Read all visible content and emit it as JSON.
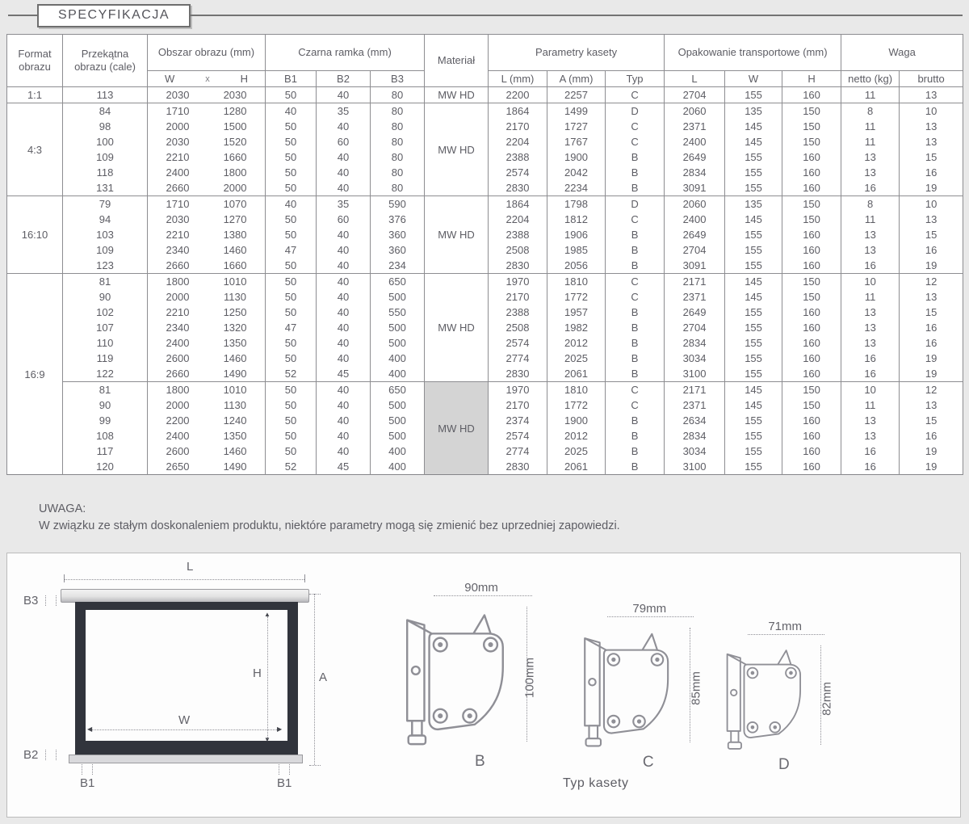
{
  "page": {
    "title": "SPECYFIKACJA"
  },
  "note": {
    "title": "UWAGA:",
    "text": "W związku ze stałym doskonaleniem produktu, niektóre parametry mogą się zmienić bez uprzedniej zapowiedzi."
  },
  "table": {
    "headers": {
      "format": "Format obrazu",
      "diagonal": "Przekątna obrazu (cale)",
      "image_area": "Obszar obrazu (mm)",
      "area_sub": [
        "W",
        "x",
        "H"
      ],
      "black_frame": "Czarna ramka (mm)",
      "black_frame_sub": [
        "B1",
        "B2",
        "B3"
      ],
      "material": "Materiał",
      "cassette": "Parametry kasety",
      "cassette_sub": [
        "L (mm)",
        "A (mm)",
        "Typ"
      ],
      "packaging": "Opakowanie transportowe (mm)",
      "packaging_sub": [
        "L",
        "W",
        "H"
      ],
      "weight": "Waga",
      "weight_sub": [
        "netto (kg)",
        "brutto"
      ]
    },
    "groups": [
      {
        "format": "1:1",
        "sections": [
          {
            "material": "MW HD",
            "highlight": false,
            "rows": [
              [
                "113",
                "2030",
                "2030",
                "50",
                "40",
                "80",
                "2200",
                "2257",
                "C",
                "2704",
                "155",
                "160",
                "11",
                "13"
              ]
            ]
          }
        ]
      },
      {
        "format": "4:3",
        "sections": [
          {
            "material": "MW HD",
            "highlight": false,
            "rows": [
              [
                "84",
                "1710",
                "1280",
                "40",
                "35",
                "80",
                "1864",
                "1499",
                "D",
                "2060",
                "135",
                "150",
                "8",
                "10"
              ],
              [
                "98",
                "2000",
                "1500",
                "50",
                "40",
                "80",
                "2170",
                "1727",
                "C",
                "2371",
                "145",
                "150",
                "11",
                "13"
              ],
              [
                "100",
                "2030",
                "1520",
                "50",
                "60",
                "80",
                "2204",
                "1767",
                "C",
                "2400",
                "145",
                "150",
                "11",
                "13"
              ],
              [
                "109",
                "2210",
                "1660",
                "50",
                "40",
                "80",
                "2388",
                "1900",
                "B",
                "2649",
                "155",
                "160",
                "13",
                "15"
              ],
              [
                "118",
                "2400",
                "1800",
                "50",
                "40",
                "80",
                "2574",
                "2042",
                "B",
                "2834",
                "155",
                "160",
                "13",
                "16"
              ],
              [
                "131",
                "2660",
                "2000",
                "50",
                "40",
                "80",
                "2830",
                "2234",
                "B",
                "3091",
                "155",
                "160",
                "16",
                "19"
              ]
            ]
          }
        ]
      },
      {
        "format": "16:10",
        "sections": [
          {
            "material": "MW HD",
            "highlight": false,
            "rows": [
              [
                "79",
                "1710",
                "1070",
                "40",
                "35",
                "590",
                "1864",
                "1798",
                "D",
                "2060",
                "135",
                "150",
                "8",
                "10"
              ],
              [
                "94",
                "2030",
                "1270",
                "50",
                "60",
                "376",
                "2204",
                "1812",
                "C",
                "2400",
                "145",
                "150",
                "11",
                "13"
              ],
              [
                "103",
                "2210",
                "1380",
                "50",
                "40",
                "360",
                "2388",
                "1906",
                "B",
                "2649",
                "155",
                "160",
                "13",
                "15"
              ],
              [
                "109",
                "2340",
                "1460",
                "47",
                "40",
                "360",
                "2508",
                "1985",
                "B",
                "2704",
                "155",
                "160",
                "13",
                "16"
              ],
              [
                "123",
                "2660",
                "1660",
                "50",
                "40",
                "234",
                "2830",
                "2056",
                "B",
                "3091",
                "155",
                "160",
                "16",
                "19"
              ]
            ]
          }
        ]
      },
      {
        "format": "16:9",
        "sections": [
          {
            "material": "MW HD",
            "highlight": false,
            "rows": [
              [
                "81",
                "1800",
                "1010",
                "50",
                "40",
                "650",
                "1970",
                "1810",
                "C",
                "2171",
                "145",
                "150",
                "10",
                "12"
              ],
              [
                "90",
                "2000",
                "1130",
                "50",
                "40",
                "500",
                "2170",
                "1772",
                "C",
                "2371",
                "145",
                "150",
                "11",
                "13"
              ],
              [
                "102",
                "2210",
                "1250",
                "50",
                "40",
                "550",
                "2388",
                "1957",
                "B",
                "2649",
                "155",
                "160",
                "13",
                "15"
              ],
              [
                "107",
                "2340",
                "1320",
                "47",
                "40",
                "500",
                "2508",
                "1982",
                "B",
                "2704",
                "155",
                "160",
                "13",
                "16"
              ],
              [
                "110",
                "2400",
                "1350",
                "50",
                "40",
                "500",
                "2574",
                "2012",
                "B",
                "2834",
                "155",
                "160",
                "13",
                "16"
              ],
              [
                "119",
                "2600",
                "1460",
                "50",
                "40",
                "400",
                "2774",
                "2025",
                "B",
                "3034",
                "155",
                "160",
                "16",
                "19"
              ],
              [
                "122",
                "2660",
                "1490",
                "52",
                "45",
                "400",
                "2830",
                "2061",
                "B",
                "3100",
                "155",
                "160",
                "16",
                "19"
              ]
            ]
          },
          {
            "material": "MW HD",
            "highlight": true,
            "rows": [
              [
                "81",
                "1800",
                "1010",
                "50",
                "40",
                "650",
                "1970",
                "1810",
                "C",
                "2171",
                "145",
                "150",
                "10",
                "12"
              ],
              [
                "90",
                "2000",
                "1130",
                "50",
                "40",
                "500",
                "2170",
                "1772",
                "C",
                "2371",
                "145",
                "150",
                "11",
                "13"
              ],
              [
                "99",
                "2200",
                "1240",
                "50",
                "40",
                "500",
                "2374",
                "1900",
                "B",
                "2634",
                "155",
                "160",
                "13",
                "15"
              ],
              [
                "108",
                "2400",
                "1350",
                "50",
                "40",
                "500",
                "2574",
                "2012",
                "B",
                "2834",
                "155",
                "160",
                "13",
                "16"
              ],
              [
                "117",
                "2600",
                "1460",
                "50",
                "40",
                "400",
                "2774",
                "2025",
                "B",
                "3034",
                "155",
                "160",
                "16",
                "19"
              ],
              [
                "120",
                "2650",
                "1490",
                "52",
                "45",
                "400",
                "2830",
                "2061",
                "B",
                "3100",
                "155",
                "160",
                "16",
                "19"
              ]
            ]
          }
        ]
      }
    ]
  },
  "diagram": {
    "screen_labels": {
      "L": "L",
      "A": "A",
      "H": "H",
      "W": "W",
      "B1_left": "B1",
      "B1_right": "B1",
      "B2": "B2",
      "B3": "B3"
    },
    "cassettes": [
      {
        "type": "B",
        "width_label": "90mm",
        "height_label": "100mm"
      },
      {
        "type": "C",
        "width_label": "79mm",
        "height_label": "85mm"
      },
      {
        "type": "D",
        "width_label": "71mm",
        "height_label": "82mm"
      }
    ],
    "caption": "Typ kasety"
  },
  "colors": {
    "accent_gray_cell": "#d4d4d4",
    "frame_dark": "#31343c",
    "text": "#5d5d64"
  }
}
